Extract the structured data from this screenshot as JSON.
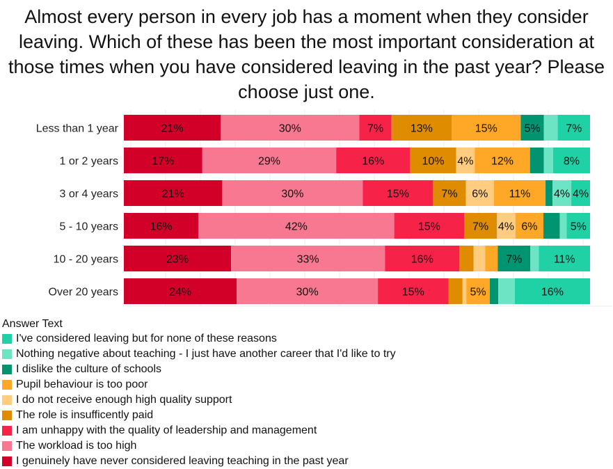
{
  "chart_data": {
    "type": "bar",
    "orientation": "horizontal",
    "stacked": true,
    "title": "Almost every person in every job has a moment when they consider leaving. Which of these has been the most important consideration at those times when you have considered leaving in the past year? Please choose just one.",
    "categories": [
      "Less than 1 year",
      "1 or 2 years",
      "3 or 4 years",
      "5 - 10 years",
      "10 - 20 years",
      "Over 20 years"
    ],
    "xlim": [
      0,
      100
    ],
    "grid": true,
    "legend_title": "Answer Text",
    "legend_placement": "bottom-left",
    "series": [
      {
        "name": "I genuinely have never considered leaving teaching in the past year",
        "color": "#d20028",
        "values": [
          21,
          17,
          21,
          16,
          23,
          24
        ]
      },
      {
        "name": "The workload is too high",
        "color": "#f87891",
        "values": [
          30,
          29,
          30,
          42,
          33,
          30
        ]
      },
      {
        "name": "I am unhappy with the quality of leadership and management",
        "color": "#f72248",
        "values": [
          7,
          16,
          15,
          15,
          16,
          15
        ]
      },
      {
        "name": "The role is insufficently paid",
        "color": "#e08c00",
        "values": [
          13,
          10,
          7,
          7,
          3,
          3
        ]
      },
      {
        "name": "I do not receive enough high quality support",
        "color": "#ffcc80",
        "values": [
          0,
          4,
          6,
          4,
          2.5,
          0.8
        ]
      },
      {
        "name": "Pupil behaviour is too poor",
        "color": "#ffa726",
        "values": [
          15,
          12,
          11,
          6,
          2.7,
          5
        ]
      },
      {
        "name": "I dislike the culture of schools",
        "color": "#009471",
        "values": [
          5,
          3,
          1.5,
          3.5,
          7,
          1.8
        ]
      },
      {
        "name": "Nothing negative about teaching - I just have another career that I'd like to try",
        "color": "#6de5c5",
        "values": [
          3,
          2,
          4,
          1.5,
          1.8,
          3.5
        ]
      },
      {
        "name": "I've considered leaving but for none of these reasons",
        "color": "#1fd1a5",
        "values": [
          7,
          8,
          4,
          5,
          11,
          16
        ]
      }
    ],
    "labels": [
      [
        "21%",
        "30%",
        "7%",
        "13%",
        "",
        "15%",
        "5%",
        "",
        "7%"
      ],
      [
        "17%",
        "29%",
        "16%",
        "10%",
        "4%",
        "12%",
        "",
        "",
        "8%"
      ],
      [
        "21%",
        "30%",
        "15%",
        "7%",
        "6%",
        "11%",
        "",
        "4%",
        "4%"
      ],
      [
        "16%",
        "42%",
        "15%",
        "7%",
        "4%",
        "6%",
        "",
        "",
        "5%"
      ],
      [
        "23%",
        "33%",
        "16%",
        "",
        "",
        "",
        "7%",
        "",
        "11%"
      ],
      [
        "24%",
        "30%",
        "15%",
        "",
        "",
        "5%",
        "",
        "",
        "16%"
      ]
    ]
  }
}
